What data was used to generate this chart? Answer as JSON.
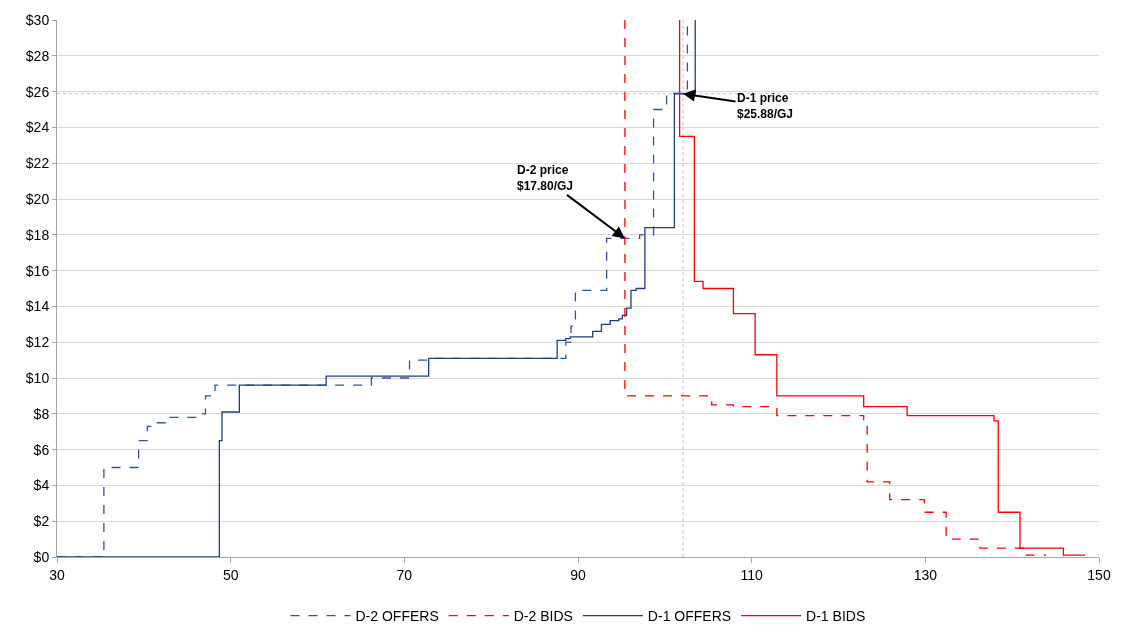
{
  "chart_data": {
    "type": "step",
    "xlim": [
      30,
      150
    ],
    "xticks": [
      30,
      50,
      70,
      90,
      110,
      130,
      150
    ],
    "ylim": [
      0,
      30
    ],
    "yticks": [
      {
        "value": 0,
        "label": "$0"
      },
      {
        "value": 2,
        "label": "$2"
      },
      {
        "value": 4,
        "label": "$4"
      },
      {
        "value": 6,
        "label": "$6"
      },
      {
        "value": 8,
        "label": "$8"
      },
      {
        "value": 10,
        "label": "$10"
      },
      {
        "value": 12,
        "label": "$12"
      },
      {
        "value": 14,
        "label": "$14"
      },
      {
        "value": 16,
        "label": "$16"
      },
      {
        "value": 18,
        "label": "$18"
      },
      {
        "value": 20,
        "label": "$20"
      },
      {
        "value": 22,
        "label": "$22"
      },
      {
        "value": 24,
        "label": "$24"
      },
      {
        "value": 26,
        "label": "$26"
      },
      {
        "value": 28,
        "label": "$28"
      },
      {
        "value": 30,
        "label": "$30"
      }
    ],
    "grid": "y",
    "legend": "bottom",
    "marker": "none",
    "series": [
      {
        "name": "D-2 OFFERS",
        "color": "#2f5597",
        "line_style": "dashed",
        "x": [
          30,
          35.4,
          39.4,
          40.4,
          41.3,
          42.9,
          46.1,
          47.1,
          48.2,
          66.2,
          70.6,
          73.5,
          88.6,
          89.2,
          89.7,
          93.3,
          97.1,
          98.7,
          100.2,
          102.6
        ],
        "values": [
          0,
          5.0,
          6.5,
          7.3,
          7.5,
          7.8,
          8.0,
          9.0,
          9.6,
          10.0,
          11.0,
          11.1,
          12.0,
          12.9,
          14.9,
          17.8,
          18.0,
          25.0,
          25.9,
          30
        ]
      },
      {
        "name": "D-2 BIDS",
        "color": "#ff0000",
        "line_style": "dashed",
        "x": [
          95.4,
          95.4,
          105.4,
          107.9,
          112.9,
          122.9,
          123.3,
          125.9,
          129.9,
          132.4,
          136.3,
          141.3,
          143.9
        ],
        "values": [
          30,
          9.0,
          8.5,
          8.4,
          7.9,
          7.6,
          4.2,
          3.2,
          2.5,
          1.0,
          0.5,
          0.1,
          0.1
        ]
      },
      {
        "name": "D-1 OFFERS",
        "color": "#1f3f7a",
        "line_style": "solid",
        "x": [
          30,
          48.7,
          49.0,
          51.0,
          61.0,
          72.8,
          87.6,
          88.6,
          89.1,
          91.7,
          92.7,
          93.7,
          94.7,
          95.1,
          95.6,
          96.1,
          96.7,
          97.7,
          101.1,
          103.5
        ],
        "values": [
          0,
          6.5,
          8.1,
          9.6,
          10.1,
          11.1,
          12.1,
          12.2,
          12.3,
          12.6,
          13.0,
          13.2,
          13.3,
          13.5,
          13.9,
          14.9,
          15.0,
          18.4,
          25.88,
          30
        ]
      },
      {
        "name": "D-1 BIDS",
        "color": "#ff0000",
        "line_style": "solid",
        "x": [
          101.7,
          101.7,
          103.4,
          104.4,
          107.9,
          110.4,
          112.9,
          122.9,
          127.9,
          137.9,
          138.4,
          140.9,
          145.9,
          148.4
        ],
        "values": [
          30,
          23.5,
          15.4,
          15.0,
          13.6,
          11.3,
          9.0,
          8.4,
          7.9,
          7.6,
          2.5,
          0.5,
          0.1,
          0.1
        ]
      }
    ],
    "ref_lines": [
      {
        "axis": "x",
        "value": 102.1,
        "color": "#bfbfbf",
        "line_style": "dotted"
      },
      {
        "axis": "y",
        "value": 25.88,
        "color": "#bfbfbf",
        "line_style": "dotted"
      }
    ],
    "annotations": [
      {
        "text": "D-2 price\n$17.80/GJ",
        "x": 95.4,
        "y": 17.8
      },
      {
        "text": "D-1 price\n$25.88/GJ",
        "x": 102.1,
        "y": 25.88
      }
    ]
  }
}
